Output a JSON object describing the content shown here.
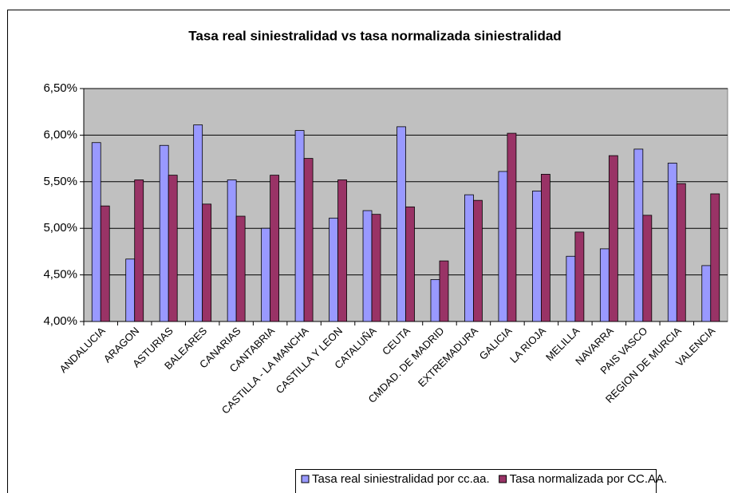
{
  "chart_data": {
    "type": "bar",
    "title": "Tasa real siniestralidad vs tasa normalizada siniestralidad",
    "categories": [
      "ANDALUCIA",
      "ARAGON",
      "ASTURIAS",
      "BALEARES",
      "CANARIAS",
      "CANTABRIA",
      "CASTILLA - LA MANCHA",
      "CASTILLA Y LEON",
      "CATALUÑA",
      "CEUTA",
      "CMDAD. DE MADRID",
      "EXTREMADURA",
      "GALICIA",
      "LA RIOJA",
      "MELILLA",
      "NAVARRA",
      "PAIS VASCO",
      "REGION DE MURCIA",
      "VALENCIA"
    ],
    "series": [
      {
        "name": "Tasa real siniestralidad por cc.aa.",
        "color": "#9999ff",
        "values": [
          5.92,
          4.67,
          5.89,
          6.11,
          5.52,
          5.0,
          6.05,
          5.11,
          5.19,
          6.09,
          4.45,
          5.36,
          5.61,
          5.4,
          4.7,
          4.78,
          5.85,
          5.7,
          4.6
        ]
      },
      {
        "name": "Tasa normalizada por CC.AA.",
        "color": "#993366",
        "values": [
          5.24,
          5.52,
          5.57,
          5.26,
          5.13,
          5.57,
          5.75,
          5.52,
          5.15,
          5.23,
          4.65,
          5.3,
          6.02,
          5.58,
          4.96,
          5.78,
          5.14,
          5.48,
          5.37
        ]
      }
    ],
    "ylim": [
      4.0,
      6.5
    ],
    "yticks": [
      {
        "value": 4.0,
        "label": "4,00%"
      },
      {
        "value": 4.5,
        "label": "4,50%"
      },
      {
        "value": 5.0,
        "label": "5,00%"
      },
      {
        "value": 5.5,
        "label": "5,50%"
      },
      {
        "value": 6.0,
        "label": "6,00%"
      },
      {
        "value": 6.5,
        "label": "6,50%"
      }
    ],
    "grid": true,
    "plot_background": "#c0c0c0",
    "legend": "bottom"
  }
}
